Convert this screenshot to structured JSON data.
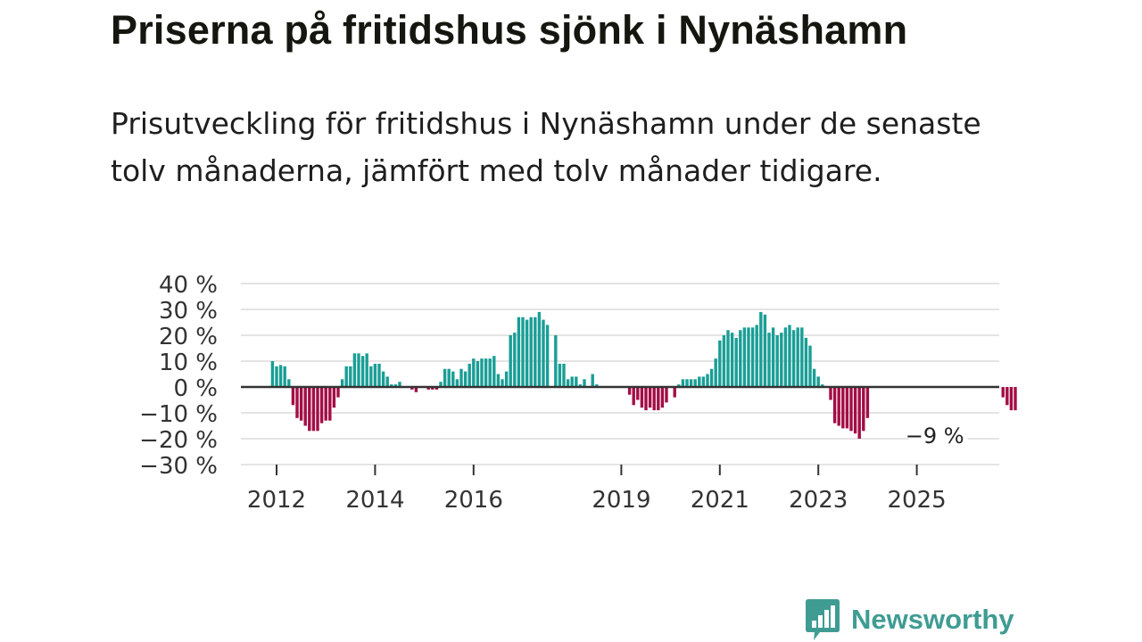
{
  "header": {
    "title": "Priserna på fritidshus sjönk i Nynäshamn",
    "subtitle": "Prisutveckling för fritidshus i Nynäshamn under de senaste tolv månaderna, jämfört med tolv månader tidigare."
  },
  "brand": {
    "name": "Newsworthy",
    "icon": "newsworthy-logo-icon",
    "color": "#3f9c93"
  },
  "colors": {
    "positive": "#1a9e96",
    "negative": "#a30d45",
    "grid": "#dcdcdc",
    "zero_line": "#333333"
  },
  "chart_data": {
    "type": "bar",
    "title": "",
    "xlabel": "",
    "ylabel": "",
    "ylim": [
      -30,
      40
    ],
    "y_ticks": [
      40,
      30,
      20,
      10,
      0,
      -10,
      -20,
      -30
    ],
    "y_tick_labels": [
      "40 %",
      "30 %",
      "20 %",
      "10 %",
      "0 %",
      "−10 %",
      "−20 %",
      "−30 %"
    ],
    "x_ticks": [
      {
        "label": "2012",
        "date": "2012-01"
      },
      {
        "label": "2014",
        "date": "2014-01"
      },
      {
        "label": "2016",
        "date": "2016-01"
      },
      {
        "label": "2019",
        "date": "2019-01"
      },
      {
        "label": "2021",
        "date": "2021-01"
      },
      {
        "label": "2023",
        "date": "2023-01"
      },
      {
        "label": "2025",
        "date": "2025-01"
      }
    ],
    "grid": true,
    "legend": "none",
    "annotation": {
      "text": "−9 %",
      "date": "2025-11",
      "value": -9
    },
    "series": [
      {
        "start": "2011-12",
        "values": [
          10,
          8,
          8.5,
          8,
          3,
          -7,
          -12,
          -13,
          -15,
          -17,
          -17,
          -17,
          -14,
          -13,
          -13,
          -8,
          -4,
          3,
          8,
          8,
          13,
          13,
          12,
          13,
          8,
          9,
          9,
          6,
          4,
          1,
          1,
          2,
          0,
          0,
          -1,
          -2,
          0,
          0,
          -1,
          -1,
          -1,
          2,
          7,
          7,
          6,
          3,
          7,
          6,
          9,
          11,
          10,
          11,
          11,
          11,
          12,
          5,
          3,
          6,
          20,
          21,
          27,
          27,
          26,
          27,
          27,
          29,
          26,
          24,
          0,
          20,
          9,
          9,
          3,
          4,
          4,
          1,
          3,
          0,
          5,
          1,
          0,
          0,
          0,
          0,
          0,
          0,
          0,
          -3,
          -7,
          -5,
          -8,
          -9,
          -8,
          -9,
          -9,
          -8,
          -6,
          0,
          -4,
          1,
          3,
          3,
          3,
          3,
          4,
          4,
          5,
          7,
          11,
          18,
          20,
          22,
          21,
          19,
          22,
          23,
          23,
          23,
          24,
          29,
          28,
          21,
          23,
          20,
          21,
          23,
          24,
          22,
          23,
          23,
          19,
          16,
          7,
          4,
          1,
          0,
          -5,
          -14,
          -15,
          -16,
          -16,
          -17,
          -18,
          -20,
          -17,
          -12,
          0,
          0,
          0,
          0,
          0,
          0,
          0,
          0,
          0,
          0,
          0,
          0,
          0,
          0,
          0,
          0,
          0,
          0,
          0,
          0,
          0,
          0,
          0,
          0,
          0,
          0,
          0,
          0,
          0,
          0,
          0,
          0,
          -4,
          -7,
          -9,
          -9
        ]
      }
    ]
  }
}
